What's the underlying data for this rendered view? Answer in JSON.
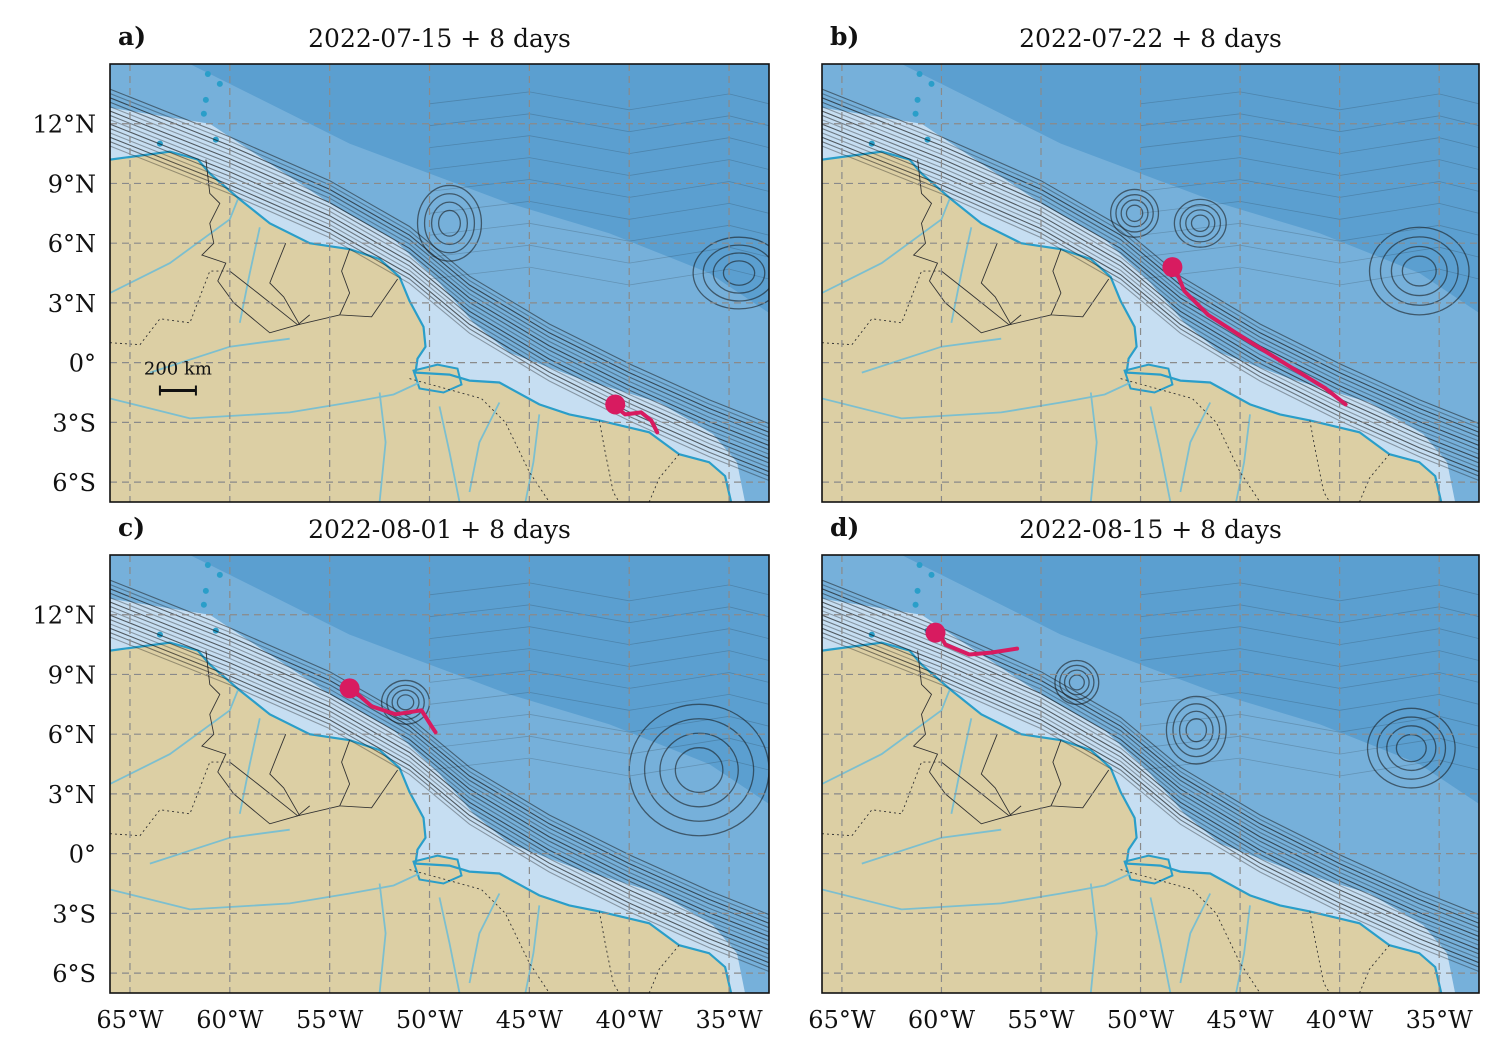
{
  "figure": {
    "scale_bar_label": "200 km",
    "colors": {
      "deep_ocean": "#5b9fd0",
      "mid_ocean": "#8dbde2",
      "shelf_ocean": "#c6def2",
      "land": "#dccfa4",
      "coastline": "#2a9ec9",
      "rivers": "#7cbfcf",
      "borders": "#333333",
      "streamlines": "#111111",
      "trajectory": "#d81b60",
      "grid": "#8a8a8a"
    },
    "axes": {
      "lat_ticks": [
        "12°N",
        "9°N",
        "6°N",
        "3°N",
        "0°",
        "3°S",
        "6°S"
      ],
      "lat_values": [
        12,
        9,
        6,
        3,
        0,
        -3,
        -6
      ],
      "lon_ticks": [
        "65°W",
        "60°W",
        "55°W",
        "50°W",
        "45°W",
        "40°W",
        "35°W"
      ],
      "lon_values": [
        -65,
        -60,
        -55,
        -50,
        -45,
        -40,
        -35
      ],
      "lon_range": [
        -66,
        -33
      ],
      "lat_range": [
        -7,
        15
      ]
    },
    "panels": [
      {
        "id": "a",
        "letter": "a)",
        "title": "2022-07-15 + 8 days",
        "trajectory": [
          [
            -40.7,
            -2.2
          ],
          [
            -40.2,
            -2.6
          ],
          [
            -39.4,
            -2.5
          ],
          [
            -38.9,
            -2.9
          ],
          [
            -38.6,
            -3.5
          ]
        ],
        "start": [
          -40.7,
          -2.1
        ],
        "eddies": [
          [
            -49.0,
            7.0,
            1.6,
            1.9
          ],
          [
            -34.5,
            4.5,
            2.3,
            1.8
          ]
        ]
      },
      {
        "id": "b",
        "letter": "b)",
        "title": "2022-07-22 + 8 days",
        "trajectory": [
          [
            -48.3,
            4.8
          ],
          [
            -47.8,
            3.6
          ],
          [
            -46.6,
            2.4
          ],
          [
            -44.6,
            1.1
          ],
          [
            -42.5,
            -0.2
          ],
          [
            -40.7,
            -1.3
          ],
          [
            -39.7,
            -2.1
          ]
        ],
        "start": [
          -48.4,
          4.8
        ],
        "eddies": [
          [
            -50.3,
            7.5,
            1.2,
            1.2
          ],
          [
            -47.0,
            7.0,
            1.3,
            1.2
          ],
          [
            -36.0,
            4.6,
            2.5,
            2.2
          ]
        ]
      },
      {
        "id": "c",
        "letter": "c)",
        "title": "2022-08-01 + 8 days",
        "trajectory": [
          [
            -53.7,
            8.1
          ],
          [
            -52.9,
            7.4
          ],
          [
            -51.7,
            7.0
          ],
          [
            -50.4,
            7.2
          ],
          [
            -49.9,
            6.4
          ],
          [
            -49.7,
            6.1
          ]
        ],
        "start": [
          -54.0,
          8.3
        ],
        "eddies": [
          [
            -51.2,
            7.6,
            1.2,
            1.1
          ],
          [
            -36.5,
            4.2,
            3.5,
            3.3
          ]
        ]
      },
      {
        "id": "d",
        "letter": "d)",
        "title": "2022-08-15 + 8 days",
        "trajectory": [
          [
            -60.2,
            11.2
          ],
          [
            -59.8,
            10.5
          ],
          [
            -58.6,
            10.0
          ],
          [
            -57.5,
            10.1
          ],
          [
            -56.2,
            10.3
          ]
        ],
        "start": [
          -60.3,
          11.1
        ],
        "eddies": [
          [
            -53.2,
            8.6,
            1.1,
            1.1
          ],
          [
            -47.2,
            6.2,
            1.5,
            1.7
          ],
          [
            -36.4,
            5.3,
            2.2,
            2.0
          ]
        ]
      }
    ]
  }
}
